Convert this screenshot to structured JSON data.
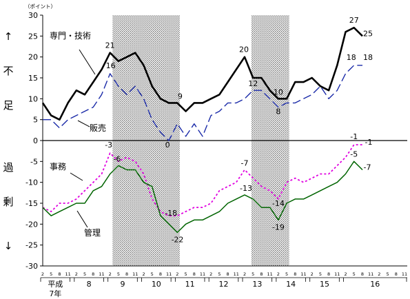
{
  "chart_data": {
    "type": "line",
    "y_unit_label": "（ポイント）",
    "ylim": [
      -30,
      30
    ],
    "y_ticks": [
      30,
      25,
      20,
      15,
      10,
      5,
      0,
      -5,
      -10,
      -15,
      -20,
      -25,
      -30
    ],
    "side_labels": {
      "top": [
        "↑",
        "不",
        "足"
      ],
      "bottom": [
        "過",
        "剰",
        "↓"
      ]
    },
    "x_month_ticks": [
      "2",
      "5",
      "8",
      "11",
      "2",
      "5",
      "8",
      "11",
      "2",
      "5",
      "8",
      "11",
      "2",
      "5",
      "8",
      "11",
      "2",
      "5",
      "8",
      "11",
      "2",
      "5",
      "8",
      "11",
      "2",
      "5",
      "8",
      "11",
      "2",
      "5",
      "8",
      "11",
      "2",
      "5",
      "8",
      "11",
      "2",
      "5",
      "8",
      "11",
      "2",
      "5",
      "8",
      "11"
    ],
    "year_labels": [
      {
        "text": "平成",
        "sub": "7年",
        "start": 0,
        "end": 3
      },
      {
        "text": "8",
        "start": 4,
        "end": 7
      },
      {
        "text": "9",
        "start": 8,
        "end": 11
      },
      {
        "text": "10",
        "start": 12,
        "end": 15
      },
      {
        "text": "11",
        "start": 16,
        "end": 19
      },
      {
        "text": "12",
        "start": 20,
        "end": 23
      },
      {
        "text": "13",
        "start": 24,
        "end": 27
      },
      {
        "text": "14",
        "start": 28,
        "end": 31
      },
      {
        "text": "15",
        "start": 32,
        "end": 35
      },
      {
        "text": "16",
        "start": 36,
        "end": 43
      }
    ],
    "shaded_periods": [
      [
        8.3,
        16.3
      ],
      [
        24.8,
        29.3
      ]
    ],
    "series": [
      {
        "name": "専門・技術",
        "color": "#000000",
        "dash": "none",
        "values": [
          9,
          6,
          5,
          9,
          12,
          11,
          14,
          17,
          21,
          19,
          20,
          21,
          18,
          13,
          10,
          9,
          9,
          7,
          9,
          9,
          10,
          11,
          14,
          17,
          20,
          15,
          15,
          12,
          10,
          10,
          14,
          14,
          15,
          13,
          12,
          18,
          26,
          27,
          25
        ]
      },
      {
        "name": "販売",
        "color": "#1a2aa8",
        "dash": "dashed",
        "values": [
          5,
          5,
          3,
          5,
          6,
          7,
          8,
          11,
          16,
          13,
          11,
          13,
          10,
          5,
          2,
          0,
          4,
          1,
          4,
          1,
          6,
          7,
          9,
          9,
          10,
          12,
          12,
          10,
          8,
          9,
          9,
          10,
          11,
          13,
          10,
          12,
          16,
          18,
          18
        ]
      },
      {
        "name": "事務",
        "color": "#e000e0",
        "dash": "dotted",
        "values": [
          -16,
          -17,
          -15,
          -15,
          -14,
          -12,
          -10,
          -8,
          -3,
          -5,
          -4,
          -5,
          -8,
          -14,
          -17,
          -18,
          -18,
          -17,
          -16,
          -16,
          -15,
          -12,
          -11,
          -10,
          -7,
          -9,
          -11,
          -12,
          -14,
          -10,
          -9,
          -10,
          -9,
          -8,
          -8,
          -6,
          -4,
          -1,
          -1
        ]
      },
      {
        "name": "管理",
        "color": "#006400",
        "dash": "none",
        "values": [
          -16,
          -18,
          -17,
          -16,
          -15,
          -15,
          -12,
          -11,
          -8,
          -6,
          -7,
          -7,
          -10,
          -11,
          -18,
          -20,
          -22,
          -20,
          -19,
          -19,
          -18,
          -17,
          -15,
          -14,
          -13,
          -14,
          -16,
          -16,
          -19,
          -15,
          -14,
          -14,
          -13,
          -12,
          -11,
          -10,
          -8,
          -5,
          -7
        ]
      }
    ],
    "annotations": [
      {
        "text": "21",
        "series": "専門・技術",
        "index": 8
      },
      {
        "text": "9",
        "series": "専門・技術",
        "index": 16
      },
      {
        "text": "20",
        "series": "専門・技術",
        "index": 24
      },
      {
        "text": "10",
        "series": "専門・技術",
        "index": 28
      },
      {
        "text": "27",
        "series": "専門・技術",
        "index": 37
      },
      {
        "text": "25",
        "series": "専門・技術",
        "index": 38
      },
      {
        "text": "16",
        "series": "販売",
        "index": 8
      },
      {
        "text": "0",
        "series": "販売",
        "index": 15
      },
      {
        "text": "12",
        "series": "販売",
        "index": 25
      },
      {
        "text": "8",
        "series": "販売",
        "index": 28
      },
      {
        "text": "18",
        "series": "販売",
        "index": 37
      },
      {
        "text": "18",
        "series": "販売",
        "index": 38
      },
      {
        "text": "-3",
        "series": "事務",
        "index": 8
      },
      {
        "text": "-18",
        "series": "事務",
        "index": 15
      },
      {
        "text": "-7",
        "series": "事務",
        "index": 24
      },
      {
        "text": "-14",
        "series": "事務",
        "index": 28
      },
      {
        "text": "-1",
        "series": "事務",
        "index": 37
      },
      {
        "text": "-1",
        "series": "事務",
        "index": 38
      },
      {
        "text": "-6",
        "series": "管理",
        "index": 9
      },
      {
        "text": "-22",
        "series": "管理",
        "index": 16
      },
      {
        "text": "-13",
        "series": "管理",
        "index": 24
      },
      {
        "text": "-19",
        "series": "管理",
        "index": 28
      },
      {
        "text": "-5",
        "series": "管理",
        "index": 37
      },
      {
        "text": "-7",
        "series": "管理",
        "index": 38
      }
    ]
  }
}
